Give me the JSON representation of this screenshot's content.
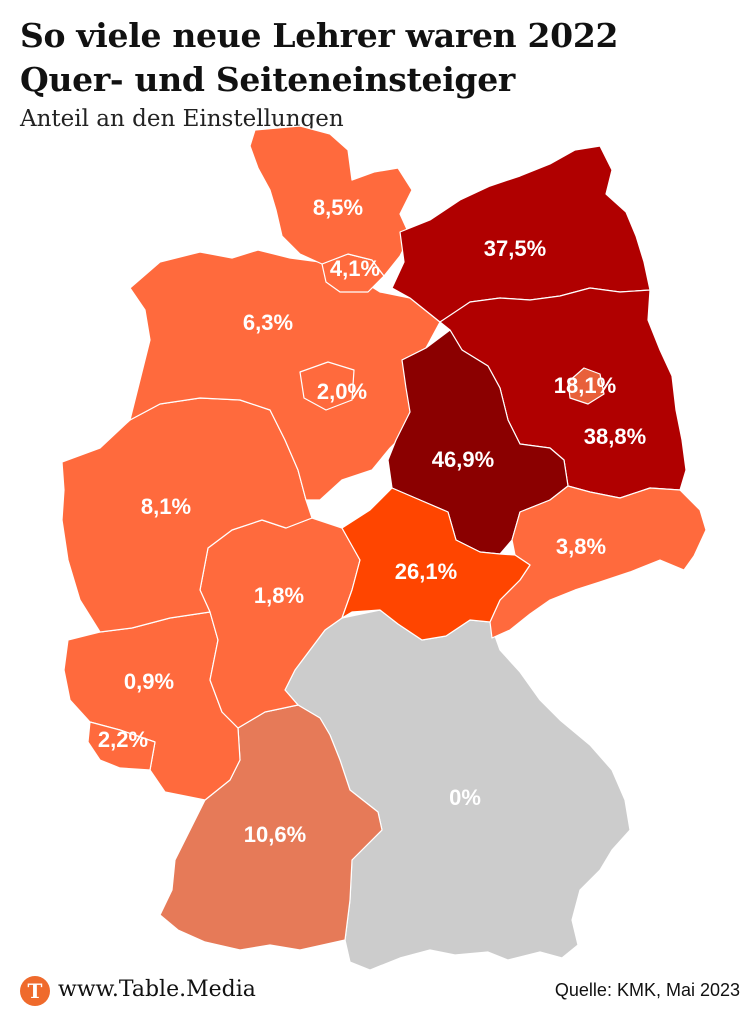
{
  "header": {
    "title_line1": "So viele neue Lehrer waren 2022",
    "title_line2": "Quer- und Seiteneinsteiger",
    "subtitle": "Anteil an den Einstellungen"
  },
  "colors": {
    "very_high": "#8b0000",
    "high": "#b00000",
    "medium": "#ff4500",
    "low": "#ff6a3d",
    "bw": "#e67a58",
    "zero": "#cccccc"
  },
  "states": [
    {
      "key": "SH",
      "label": "8,5%",
      "value": 8.5
    },
    {
      "key": "HH",
      "label": "4,1%",
      "value": 4.1
    },
    {
      "key": "MV",
      "label": "37,5%",
      "value": 37.5
    },
    {
      "key": "NI",
      "label": "6,3%",
      "value": 6.3
    },
    {
      "key": "HB",
      "label": "2,0%",
      "value": 2.0
    },
    {
      "key": "BE",
      "label": "18,1%",
      "value": 18.1
    },
    {
      "key": "BB",
      "label": "38,8%",
      "value": 38.8
    },
    {
      "key": "ST",
      "label": "46,9%",
      "value": 46.9
    },
    {
      "key": "NW",
      "label": "8,1%",
      "value": 8.1
    },
    {
      "key": "SN",
      "label": "3,8%",
      "value": 3.8
    },
    {
      "key": "TH",
      "label": "26,1%",
      "value": 26.1
    },
    {
      "key": "HE",
      "label": "1,8%",
      "value": 1.8
    },
    {
      "key": "RP",
      "label": "0,9%",
      "value": 0.9
    },
    {
      "key": "SL",
      "label": "2,2%",
      "value": 2.2
    },
    {
      "key": "BY",
      "label": "0%",
      "value": 0
    },
    {
      "key": "BW",
      "label": "10,6%",
      "value": 10.6
    }
  ],
  "footer": {
    "logo_letter": "T",
    "url": "www.Table.Media",
    "source": "Quelle: KMK, Mai 2023"
  }
}
